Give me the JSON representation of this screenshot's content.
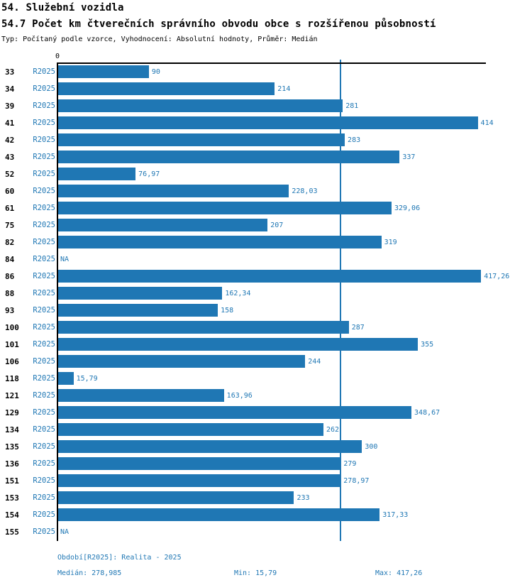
{
  "chart_data": {
    "type": "bar",
    "orientation": "horizontal",
    "title": "54. Služební vozidla",
    "subtitle": "54.7 Počet km čtverečních správního obvodu obce s rozšířenou působností",
    "meta": "Typ: Počítaný podle vzorce, Vyhodnocení: Absolutní hodnoty, Průměr: Medián",
    "categories": [
      "33",
      "34",
      "39",
      "41",
      "42",
      "43",
      "52",
      "60",
      "61",
      "75",
      "82",
      "84",
      "86",
      "88",
      "93",
      "100",
      "101",
      "106",
      "118",
      "121",
      "129",
      "134",
      "135",
      "136",
      "151",
      "153",
      "154",
      "155"
    ],
    "series": [
      {
        "name": "R2025",
        "values": [
          90,
          214,
          281,
          414,
          283,
          337,
          76.97,
          228.03,
          329.06,
          207,
          319,
          null,
          417.26,
          162.34,
          158,
          287,
          355,
          244,
          15.79,
          163.96,
          348.67,
          262,
          300,
          279,
          278.97,
          233,
          317.33,
          null
        ],
        "value_labels": [
          "90",
          "214",
          "281",
          "414",
          "283",
          "337",
          "76,97",
          "228,03",
          "329,06",
          "207",
          "319",
          "NA",
          "417,26",
          "162,34",
          "158",
          "287",
          "355",
          "244",
          "15,79",
          "163,96",
          "348,67",
          "262",
          "300",
          "279",
          "278,97",
          "233",
          "317,33",
          "NA"
        ]
      }
    ],
    "na_label": "NA",
    "x_axis": {
      "position": "top",
      "zero_tick_label": "0",
      "xlim": [
        0,
        422
      ]
    },
    "median_line": {
      "value": 278.985
    },
    "grid": false,
    "legend": "none",
    "annotations": {
      "period": "Období[R2025]: Realita - 2025",
      "median": "Medián: 278,985",
      "min": "Min: 15,79",
      "max": "Max: 417,26"
    },
    "colors": {
      "bar": "#1F77B4",
      "accent_text": "#1F77B4",
      "axis": "#000000",
      "category_text": "#000000"
    }
  }
}
